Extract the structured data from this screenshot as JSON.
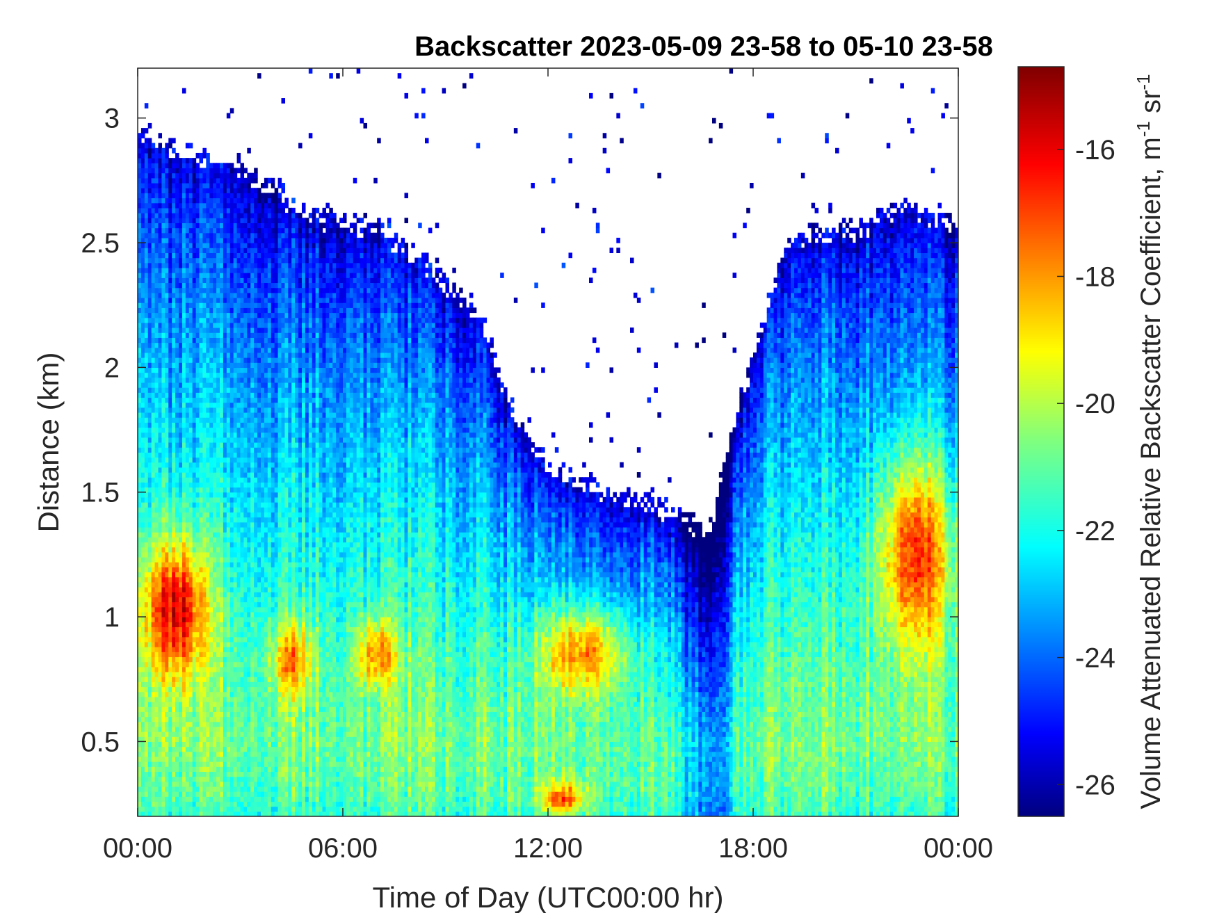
{
  "chart_data": {
    "type": "heatmap",
    "title": "Backscatter 2023-05-09 23-58 to 05-10 23-58",
    "xlabel": "Time of Day (UTC00:00 hr)",
    "ylabel": "Distance (km)",
    "colorbar_label_main": "Volume Attenuated Relative Backscatter Coefficient, m",
    "colorbar_label_exp1": "-1",
    "colorbar_label_mid": " sr",
    "colorbar_label_exp2": "-1",
    "xlim": [
      0,
      24
    ],
    "ylim": [
      0.2,
      3.2
    ],
    "clim": [
      -26.5,
      -14.7
    ],
    "colormap": "jet",
    "x_ticks": [
      {
        "value": 0,
        "label": "00:00"
      },
      {
        "value": 6,
        "label": "06:00"
      },
      {
        "value": 12,
        "label": "12:00"
      },
      {
        "value": 18,
        "label": "18:00"
      },
      {
        "value": 24,
        "label": "00:00"
      }
    ],
    "y_ticks": [
      {
        "value": 0.5,
        "label": "0.5"
      },
      {
        "value": 1,
        "label": "1"
      },
      {
        "value": 1.5,
        "label": "1.5"
      },
      {
        "value": 2,
        "label": "2"
      },
      {
        "value": 2.5,
        "label": "2.5"
      },
      {
        "value": 3,
        "label": "3"
      }
    ],
    "colorbar_ticks": [
      {
        "value": -16,
        "label": "-16"
      },
      {
        "value": -18,
        "label": "-18"
      },
      {
        "value": -20,
        "label": "-20"
      },
      {
        "value": -22,
        "label": "-22"
      },
      {
        "value": -24,
        "label": "-24"
      },
      {
        "value": -26,
        "label": "-26"
      }
    ],
    "signal_top_km": [
      {
        "time_h": 0,
        "top_km": 2.9
      },
      {
        "time_h": 1,
        "top_km": 2.8
      },
      {
        "time_h": 3,
        "top_km": 2.75
      },
      {
        "time_h": 5,
        "top_km": 2.55
      },
      {
        "time_h": 7,
        "top_km": 2.5
      },
      {
        "time_h": 8.5,
        "top_km": 2.35
      },
      {
        "time_h": 10,
        "top_km": 2.15
      },
      {
        "time_h": 11,
        "top_km": 1.75
      },
      {
        "time_h": 12,
        "top_km": 1.55
      },
      {
        "time_h": 13.5,
        "top_km": 1.45
      },
      {
        "time_h": 15,
        "top_km": 1.4
      },
      {
        "time_h": 16,
        "top_km": 1.35
      },
      {
        "time_h": 16.7,
        "top_km": 1.25
      },
      {
        "time_h": 17.2,
        "top_km": 1.6
      },
      {
        "time_h": 18,
        "top_km": 2.0
      },
      {
        "time_h": 19,
        "top_km": 2.45
      },
      {
        "time_h": 21,
        "top_km": 2.5
      },
      {
        "time_h": 22.5,
        "top_km": 2.6
      },
      {
        "time_h": 24,
        "top_km": 2.5
      }
    ],
    "high_backscatter_layers": [
      {
        "time_h": [
          0,
          2.2
        ],
        "distance_km": [
          0.7,
          1.35
        ],
        "peak_value": -15.5
      },
      {
        "time_h": [
          3.8,
          5.2
        ],
        "distance_km": [
          0.65,
          1.0
        ],
        "peak_value": -17.5
      },
      {
        "time_h": [
          6.3,
          7.7
        ],
        "distance_km": [
          0.7,
          1.0
        ],
        "peak_value": -17.5
      },
      {
        "time_h": [
          11.5,
          14.5
        ],
        "distance_km": [
          0.65,
          1.05
        ],
        "peak_value": -17.5
      },
      {
        "time_h": [
          21.5,
          24
        ],
        "distance_km": [
          0.8,
          1.7
        ],
        "peak_value": -16.5
      },
      {
        "time_h": [
          11.7,
          13.2
        ],
        "distance_km": [
          0.2,
          0.35
        ],
        "peak_value": -17
      }
    ]
  }
}
